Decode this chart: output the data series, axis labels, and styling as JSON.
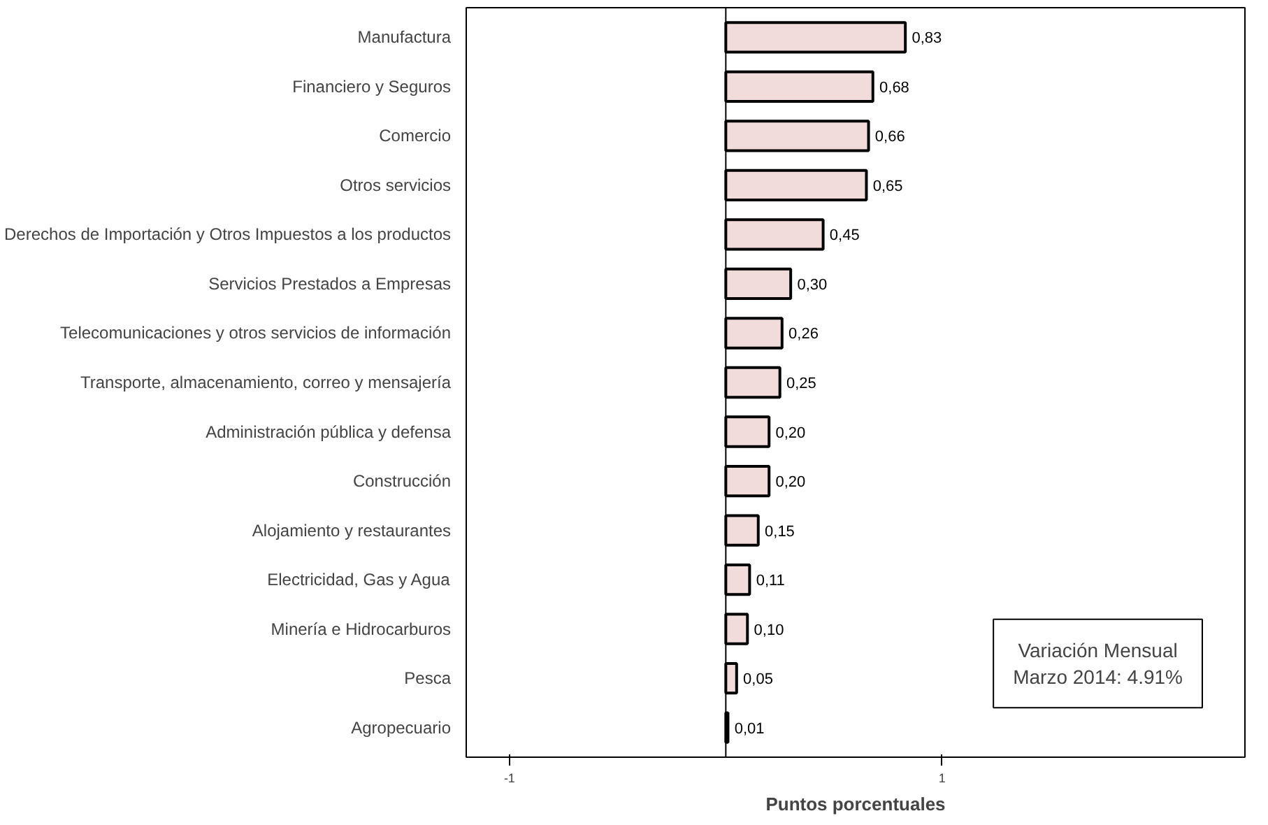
{
  "chart_data": {
    "type": "bar",
    "orientation": "horizontal",
    "xlabel": "Puntos porcentuales",
    "categories": [
      "Manufactura",
      "Financiero y Seguros",
      "Comercio",
      "Otros servicios",
      "Derechos de Importación y Otros Impuestos a los productos",
      "Servicios Prestados a Empresas",
      "Telecomunicaciones y otros servicios de información",
      "Transporte, almacenamiento, correo y mensajería",
      "Administración pública y defensa",
      "Construcción",
      "Alojamiento y restaurantes",
      "Electricidad, Gas y Agua",
      "Minería e Hidrocarburos",
      "Pesca",
      "Agropecuario"
    ],
    "values": [
      0.83,
      0.68,
      0.66,
      0.65,
      0.45,
      0.3,
      0.26,
      0.25,
      0.2,
      0.2,
      0.15,
      0.11,
      0.1,
      0.05,
      0.01
    ],
    "value_labels": [
      "0,83",
      "0,68",
      "0,66",
      "0,65",
      "0,45",
      "0,30",
      "0,26",
      "0,25",
      "0,20",
      "0,20",
      "0,15",
      "0,11",
      "0,10",
      "0,05",
      "0,01"
    ],
    "color": "#f2dcdb",
    "xlim": [
      -1.2,
      2.4
    ],
    "xticks": [
      -1,
      1
    ],
    "grid": false,
    "annotations": [
      "Variación Mensual\nMarzo 2014: 4.91%"
    ]
  }
}
